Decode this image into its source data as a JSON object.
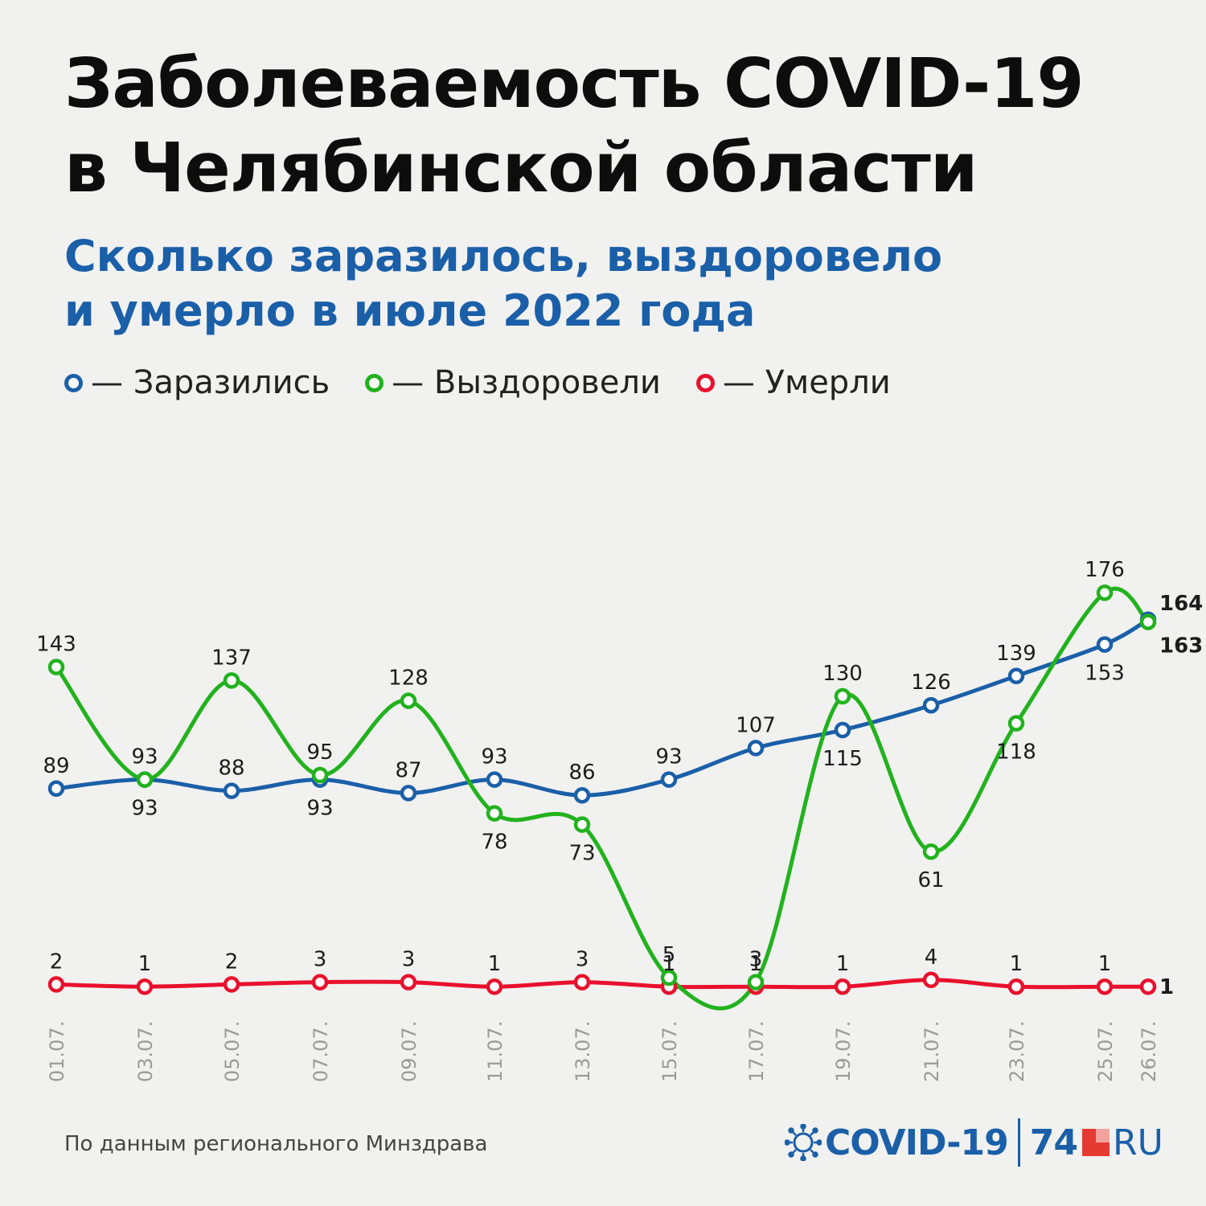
{
  "title": {
    "line1": "Заболеваемость COVID-19",
    "line2": "в Челябинской области"
  },
  "subtitle": {
    "line1": "Сколько заразилось, выздоровело",
    "line2": "и умерло в июле 2022 года"
  },
  "legend": [
    {
      "label": "— Заразились",
      "color": "#1a5fa8"
    },
    {
      "label": "— Выздоровели",
      "color": "#22b21e"
    },
    {
      "label": "— Умерли",
      "color": "#e8112d"
    }
  ],
  "source": "По данным регионального Минздрава",
  "logo": {
    "covid": "COVID-19",
    "number": "74",
    "domain": "RU"
  },
  "chart_data": {
    "type": "line",
    "x": [
      "01.07.",
      "03.07.",
      "05.07.",
      "07.07.",
      "09.07.",
      "11.07.",
      "13.07.",
      "15.07.",
      "17.07.",
      "19.07.",
      "21.07.",
      "23.07.",
      "25.07.",
      "26.07."
    ],
    "series": [
      {
        "name": "Заразились",
        "color": "#1a5fa8",
        "values": [
          89,
          93,
          88,
          93,
          87,
          93,
          86,
          93,
          107,
          115,
          126,
          139,
          153,
          164
        ]
      },
      {
        "name": "Выздоровели",
        "color": "#22b21e",
        "values": [
          143,
          93,
          137,
          95,
          128,
          78,
          73,
          5,
          3,
          130,
          61,
          118,
          176,
          163
        ]
      },
      {
        "name": "Умерли",
        "color": "#e8112d",
        "values": [
          2,
          1,
          2,
          3,
          3,
          1,
          3,
          1,
          1,
          1,
          4,
          1,
          1,
          1
        ]
      }
    ],
    "ylim": [
      0,
      320
    ],
    "grid": false,
    "legend_position": "top-left",
    "last_point_labels_bold": true
  }
}
